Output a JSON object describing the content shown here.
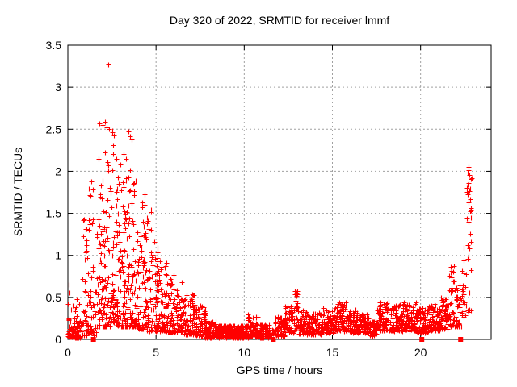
{
  "chart_data": {
    "type": "scatter",
    "title": "Day 320 of 2022, SRMTID for receiver lmmf",
    "xlabel": "GPS time / hours",
    "ylabel": "SRMTID / TECUs",
    "xlim": [
      0,
      24
    ],
    "ylim": [
      0,
      3.5
    ],
    "x_tick_values": [
      0,
      5,
      10,
      15,
      20
    ],
    "x_tick_labels": [
      "0",
      "5",
      "10",
      "15",
      "20"
    ],
    "y_tick_values": [
      0,
      0.5,
      1,
      1.5,
      2,
      2.5,
      3,
      3.5
    ],
    "y_tick_labels": [
      "0",
      "0.5",
      "1",
      "1.5",
      "2",
      "2.5",
      "3",
      "3.5"
    ],
    "grid": true,
    "grid_color": "#a0a0a0",
    "border_color": "#000000",
    "marker_color": "#ff0000",
    "seed": 320,
    "series": [
      {
        "name": "srmtid-points",
        "marker": "plus",
        "density_bins_format": [
          "x_start_h",
          "x_end_h",
          "n_points",
          "y_min",
          "y_max",
          "bottom_bias_exponent"
        ],
        "density_bins": [
          [
            0.0,
            0.3,
            38,
            0.03,
            0.45,
            2.2
          ],
          [
            0.3,
            0.8,
            55,
            0.02,
            0.5,
            2.4
          ],
          [
            0.8,
            1.15,
            42,
            0.05,
            1.45,
            2.6
          ],
          [
            1.15,
            1.45,
            40,
            0.08,
            1.9,
            2.5
          ],
          [
            1.45,
            1.7,
            16,
            0.05,
            1.3,
            2.0
          ],
          [
            1.7,
            2.05,
            52,
            0.15,
            2.45,
            2.2
          ],
          [
            2.05,
            2.4,
            55,
            0.15,
            2.6,
            2.3
          ],
          [
            2.4,
            2.8,
            58,
            0.2,
            2.5,
            2.3
          ],
          [
            2.8,
            3.2,
            58,
            0.15,
            2.3,
            2.3
          ],
          [
            3.2,
            3.6,
            58,
            0.15,
            2.45,
            2.4
          ],
          [
            3.6,
            4.0,
            55,
            0.15,
            2.2,
            2.4
          ],
          [
            4.0,
            4.4,
            52,
            0.12,
            1.9,
            2.4
          ],
          [
            4.4,
            4.8,
            52,
            0.1,
            1.6,
            2.3
          ],
          [
            4.8,
            5.2,
            52,
            0.1,
            1.25,
            2.2
          ],
          [
            5.2,
            5.6,
            50,
            0.1,
            0.95,
            2.0
          ],
          [
            5.6,
            6.0,
            50,
            0.08,
            0.8,
            1.9
          ],
          [
            6.0,
            6.6,
            62,
            0.08,
            0.7,
            1.9
          ],
          [
            6.6,
            7.2,
            62,
            0.06,
            0.55,
            1.8
          ],
          [
            7.2,
            7.8,
            62,
            0.04,
            0.4,
            1.7
          ],
          [
            7.8,
            8.4,
            70,
            0.02,
            0.22,
            1.4
          ],
          [
            8.4,
            10.2,
            230,
            0.02,
            0.17,
            1.3
          ],
          [
            10.2,
            10.8,
            65,
            0.03,
            0.3,
            1.8
          ],
          [
            10.8,
            11.4,
            70,
            0.02,
            0.18,
            1.4
          ],
          [
            11.4,
            11.75,
            10,
            0.02,
            0.12,
            1.3
          ],
          [
            11.75,
            12.3,
            58,
            0.04,
            0.28,
            1.6
          ],
          [
            12.3,
            12.85,
            58,
            0.08,
            0.4,
            1.7
          ],
          [
            12.85,
            13.05,
            24,
            0.12,
            0.58,
            1.2
          ],
          [
            13.05,
            13.6,
            55,
            0.06,
            0.35,
            1.6
          ],
          [
            13.6,
            14.4,
            85,
            0.06,
            0.32,
            1.6
          ],
          [
            14.4,
            15.1,
            75,
            0.08,
            0.38,
            1.6
          ],
          [
            15.1,
            15.9,
            85,
            0.1,
            0.45,
            1.7
          ],
          [
            15.9,
            16.6,
            75,
            0.08,
            0.38,
            1.7
          ],
          [
            16.6,
            17.1,
            52,
            0.08,
            0.3,
            1.6
          ],
          [
            17.1,
            17.5,
            42,
            0.04,
            0.22,
            1.5
          ],
          [
            17.5,
            18.2,
            75,
            0.1,
            0.45,
            1.7
          ],
          [
            18.2,
            19.0,
            85,
            0.1,
            0.42,
            1.7
          ],
          [
            19.0,
            19.8,
            85,
            0.1,
            0.45,
            1.7
          ],
          [
            19.8,
            20.4,
            62,
            0.08,
            0.38,
            1.6
          ],
          [
            20.4,
            21.1,
            72,
            0.1,
            0.42,
            1.6
          ],
          [
            21.1,
            21.6,
            52,
            0.12,
            0.5,
            1.6
          ],
          [
            21.6,
            21.95,
            38,
            0.15,
            0.9,
            1.8
          ],
          [
            21.95,
            22.35,
            36,
            0.15,
            0.65,
            1.6
          ],
          [
            22.35,
            22.6,
            20,
            0.25,
            1.1,
            1.5
          ],
          [
            22.6,
            22.9,
            28,
            0.3,
            2.07,
            1.1
          ]
        ],
        "notable_points": [
          [
            2.29,
            3.27
          ],
          [
            1.8,
            2.57
          ],
          [
            1.95,
            2.55
          ],
          [
            2.1,
            2.59
          ],
          [
            2.18,
            2.52
          ],
          [
            2.32,
            2.5
          ],
          [
            2.52,
            2.48
          ],
          [
            2.62,
            2.43
          ],
          [
            3.45,
            2.47
          ],
          [
            3.52,
            2.42
          ],
          [
            3.6,
            2.38
          ],
          [
            0.9,
            1.43
          ],
          [
            1.32,
            1.88
          ],
          [
            0.05,
            0.65
          ],
          [
            0.08,
            0.56
          ],
          [
            12.98,
            0.56
          ],
          [
            12.95,
            0.52
          ],
          [
            22.72,
            2.05
          ],
          [
            22.76,
            1.96
          ],
          [
            22.7,
            1.86
          ],
          [
            22.78,
            1.76
          ],
          [
            22.74,
            1.63
          ],
          [
            22.8,
            1.52
          ]
        ]
      },
      {
        "name": "flag-squares",
        "marker": "filled-square",
        "points": [
          [
            1.45,
            0.0
          ],
          [
            11.65,
            0.0
          ],
          [
            20.07,
            0.0
          ],
          [
            22.27,
            0.0
          ]
        ]
      }
    ]
  }
}
